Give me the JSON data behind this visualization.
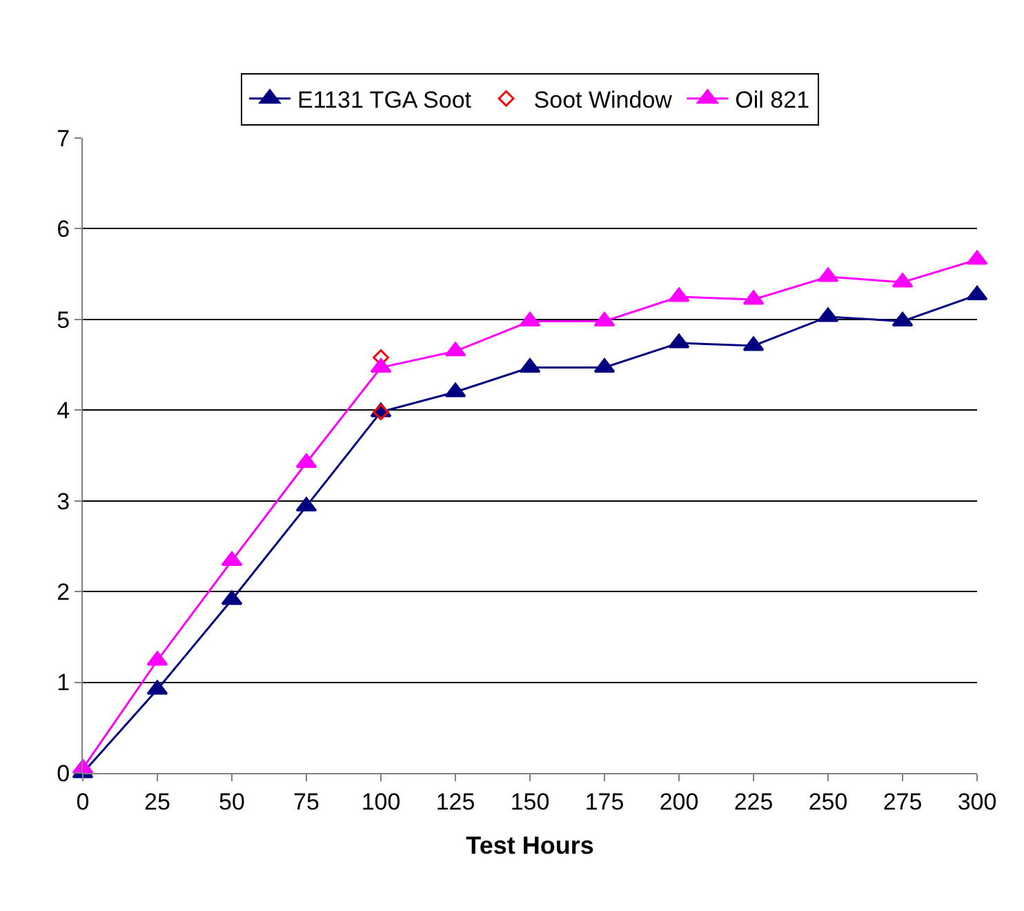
{
  "chart_data": {
    "type": "line",
    "xlabel": "Test Hours",
    "x": [
      0,
      25,
      50,
      75,
      100,
      125,
      150,
      175,
      200,
      225,
      250,
      275,
      300
    ],
    "series": [
      {
        "name": "E1131 TGA Soot",
        "color": "#000080",
        "marker": "triangle",
        "values": [
          0,
          0.92,
          1.91,
          2.94,
          3.98,
          4.2,
          4.47,
          4.47,
          4.74,
          4.71,
          5.03,
          4.98,
          5.27
        ]
      },
      {
        "name": "Soot Window",
        "type": "scatter",
        "color": "#ff0000",
        "marker": "diamond",
        "x": [
          100,
          100
        ],
        "values": [
          4.58,
          3.98
        ]
      },
      {
        "name": "Oil 821",
        "color": "#ff00ff",
        "marker": "triangle",
        "values": [
          0.05,
          1.24,
          2.34,
          3.42,
          4.47,
          4.65,
          4.98,
          4.98,
          5.25,
          5.22,
          5.47,
          5.41,
          5.66
        ]
      }
    ],
    "xlim": [
      0,
      300
    ],
    "xticks": [
      0,
      25,
      50,
      75,
      100,
      125,
      150,
      175,
      200,
      225,
      250,
      275,
      300
    ],
    "ylim": [
      0,
      7
    ],
    "yticks": [
      0,
      1,
      2,
      3,
      4,
      5,
      6,
      7
    ],
    "grid": "y",
    "legend": "top"
  }
}
